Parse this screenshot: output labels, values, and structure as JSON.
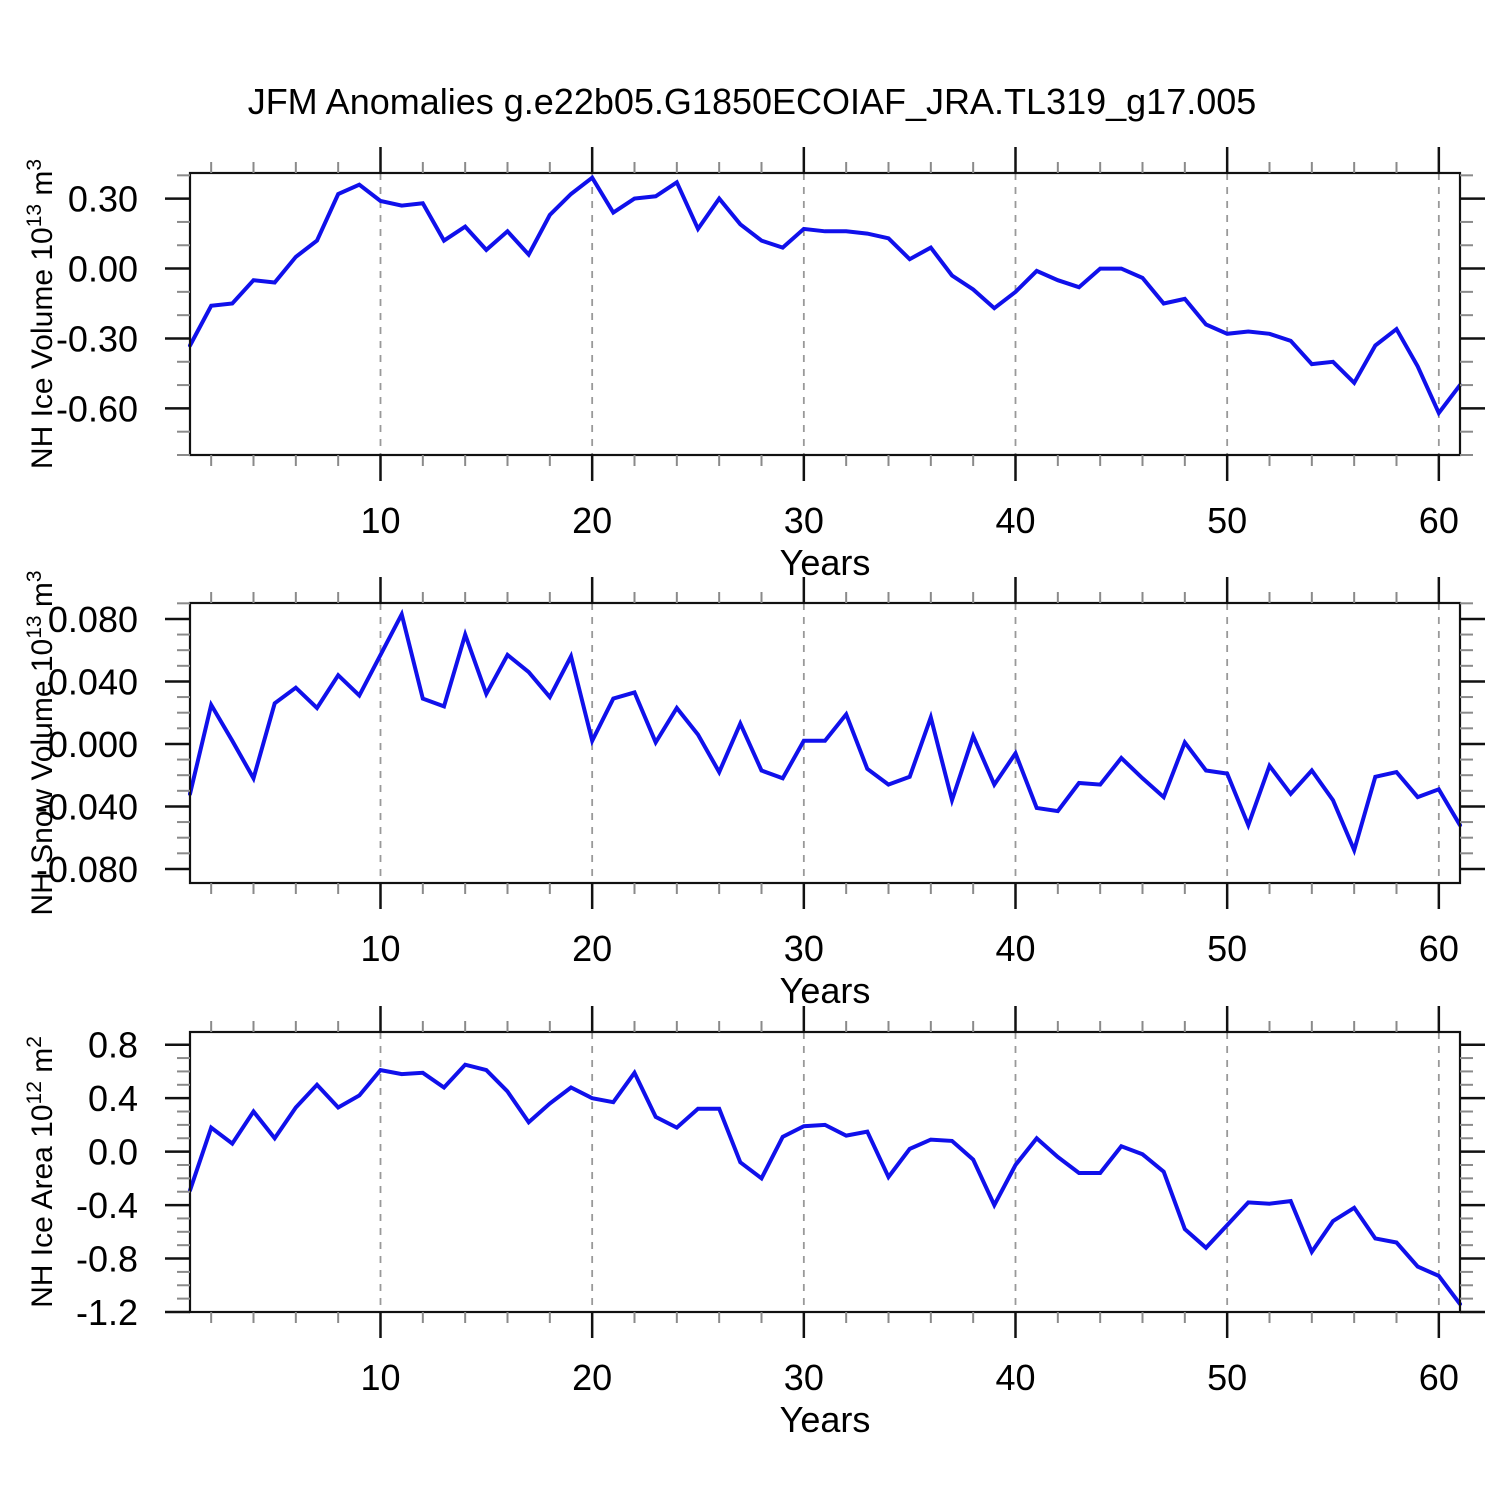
{
  "title": "JFM Anomalies g.e22b05.G1850ECOIAF_JRA.TL319_g17.005",
  "style": {
    "line_color": "#1010eb",
    "grid_color": "#999999",
    "axis_color": "#111111",
    "minor_tick_color": "#8a8a8a",
    "background": "#ffffff"
  },
  "chart_data": [
    {
      "type": "line",
      "id": "nh-ice-volume",
      "ylabel_segments": [
        {
          "t": "NH Ice Volume 10"
        },
        {
          "t": "13",
          "sup": true
        },
        {
          "t": " m"
        },
        {
          "t": "3",
          "sup": true
        }
      ],
      "ylim": [
        -0.8,
        0.41
      ],
      "yticks": {
        "values": [
          0.3,
          0.0,
          -0.3,
          -0.6
        ],
        "labels": [
          "0.30",
          "0.00",
          "-0.30",
          "-0.60"
        ],
        "major_step": 0.3,
        "minor_step": 0.1
      },
      "xlabel": "Years",
      "xlim": [
        1,
        61
      ],
      "xticks": {
        "major": [
          10,
          20,
          30,
          40,
          50,
          60
        ],
        "minor_step": 2
      },
      "grid_x_dashed": true,
      "series": [
        {
          "name": "JFM NH ice volume anomaly",
          "color": "#1010eb",
          "x_start": 1,
          "values": [
            -0.33,
            -0.16,
            -0.15,
            -0.05,
            -0.06,
            0.05,
            0.12,
            0.32,
            0.36,
            0.29,
            0.27,
            0.28,
            0.12,
            0.18,
            0.08,
            0.16,
            0.06,
            0.23,
            0.32,
            0.39,
            0.24,
            0.3,
            0.31,
            0.37,
            0.17,
            0.3,
            0.19,
            0.12,
            0.09,
            0.17,
            0.16,
            0.16,
            0.15,
            0.13,
            0.04,
            0.09,
            -0.03,
            -0.09,
            -0.17,
            -0.1,
            -0.01,
            -0.05,
            -0.08,
            0.0,
            0.0,
            -0.04,
            -0.15,
            -0.13,
            -0.24,
            -0.28,
            -0.27,
            -0.28,
            -0.31,
            -0.41,
            -0.4,
            -0.49,
            -0.33,
            -0.26,
            -0.42,
            -0.62,
            -0.5
          ]
        }
      ]
    },
    {
      "type": "line",
      "id": "nh-snow-volume",
      "ylabel_segments": [
        {
          "t": "NH Snow Volume 10"
        },
        {
          "t": "13",
          "sup": true
        },
        {
          "t": " m"
        },
        {
          "t": "3",
          "sup": true
        }
      ],
      "ylim": [
        -0.089,
        0.0902
      ],
      "yticks": {
        "values": [
          0.08,
          0.04,
          0.0,
          -0.04,
          -0.08
        ],
        "labels": [
          "0.080",
          "0.040",
          "0.000",
          "-0.040",
          "-0.080"
        ],
        "major_step": 0.04,
        "minor_step": 0.01
      },
      "xlabel": "Years",
      "xlim": [
        1,
        61
      ],
      "xticks": {
        "major": [
          10,
          20,
          30,
          40,
          50,
          60
        ],
        "minor_step": 2
      },
      "grid_x_dashed": true,
      "series": [
        {
          "name": "JFM NH snow volume anomaly",
          "color": "#1010eb",
          "x_start": 1,
          "values": [
            -0.032,
            0.025,
            0.002,
            -0.022,
            0.026,
            0.036,
            0.023,
            0.044,
            0.031,
            0.057,
            0.083,
            0.029,
            0.024,
            0.07,
            0.032,
            0.057,
            0.046,
            0.03,
            0.056,
            0.002,
            0.029,
            0.033,
            0.001,
            0.023,
            0.006,
            -0.018,
            0.013,
            -0.017,
            -0.022,
            0.002,
            0.002,
            0.019,
            -0.016,
            -0.026,
            -0.021,
            0.017,
            -0.036,
            0.005,
            -0.026,
            -0.006,
            -0.041,
            -0.043,
            -0.025,
            -0.026,
            -0.009,
            -0.022,
            -0.034,
            0.001,
            -0.017,
            -0.019,
            -0.052,
            -0.014,
            -0.032,
            -0.017,
            -0.036,
            -0.068,
            -0.021,
            -0.018,
            -0.034,
            -0.029,
            -0.052
          ]
        }
      ]
    },
    {
      "type": "line",
      "id": "nh-ice-area",
      "ylabel_segments": [
        {
          "t": "NH Ice Area 10"
        },
        {
          "t": "12",
          "sup": true
        },
        {
          "t": " m"
        },
        {
          "t": "2",
          "sup": true
        }
      ],
      "ylim": [
        -1.2,
        0.895
      ],
      "yticks": {
        "values": [
          0.8,
          0.4,
          0.0,
          -0.4,
          -0.8,
          -1.2
        ],
        "labels": [
          "0.8",
          "0.4",
          "0.0",
          "-0.4",
          "-0.8",
          "-1.2"
        ],
        "major_step": 0.4,
        "minor_step": 0.1
      },
      "xlabel": "Years",
      "xlim": [
        1,
        61
      ],
      "xticks": {
        "major": [
          10,
          20,
          30,
          40,
          50,
          60
        ],
        "minor_step": 2
      },
      "grid_x_dashed": true,
      "series": [
        {
          "name": "JFM NH ice area anomaly",
          "color": "#1010eb",
          "x_start": 1,
          "values": [
            -0.29,
            0.18,
            0.06,
            0.3,
            0.1,
            0.33,
            0.5,
            0.33,
            0.42,
            0.61,
            0.58,
            0.59,
            0.48,
            0.65,
            0.61,
            0.45,
            0.22,
            0.36,
            0.48,
            0.4,
            0.37,
            0.59,
            0.26,
            0.18,
            0.32,
            0.32,
            -0.08,
            -0.2,
            0.11,
            0.19,
            0.2,
            0.12,
            0.15,
            -0.19,
            0.02,
            0.09,
            0.08,
            -0.06,
            -0.4,
            -0.1,
            0.1,
            -0.04,
            -0.16,
            -0.16,
            0.04,
            -0.02,
            -0.15,
            -0.58,
            -0.72,
            -0.55,
            -0.38,
            -0.39,
            -0.37,
            -0.75,
            -0.52,
            -0.42,
            -0.65,
            -0.68,
            -0.86,
            -0.93,
            -1.14
          ]
        }
      ]
    }
  ]
}
